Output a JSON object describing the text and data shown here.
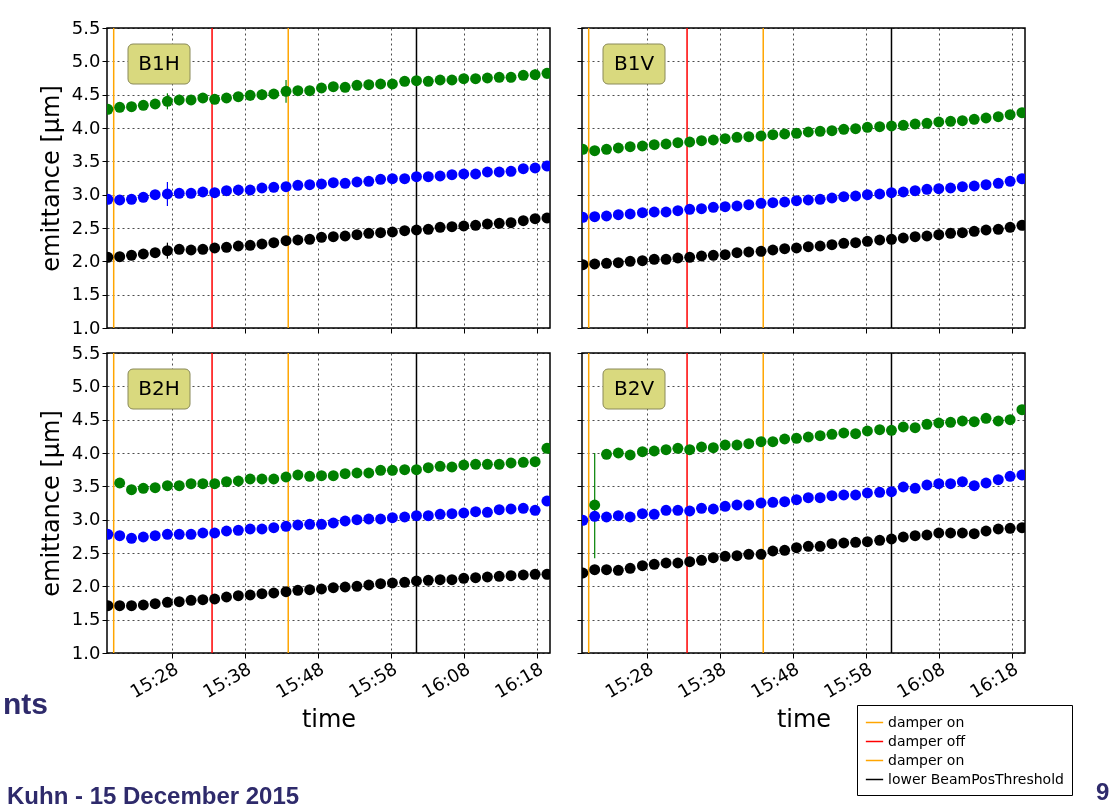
{
  "chart_data": [
    {
      "type": "scatter",
      "ylabel": "emittance [μm]",
      "annotations": [
        "B1H"
      ],
      "marker": "circle",
      "grid": true,
      "tick_labels": "y",
      "xlim": [
        15.318,
        16.33
      ],
      "xticks": [
        {
          "value": 15.4667,
          "label": null
        },
        {
          "value": 15.6333,
          "label": null
        },
        {
          "value": 15.8,
          "label": null
        },
        {
          "value": 15.9667,
          "label": null
        },
        {
          "value": 16.1333,
          "label": null
        },
        {
          "value": 16.3,
          "label": null
        }
      ],
      "ylim": [
        1,
        5.5
      ],
      "yticks": [
        {
          "value": 1,
          "label": "1.0"
        },
        1.5,
        {
          "value": 2,
          "label": "2.0"
        },
        2.5,
        {
          "value": 3,
          "label": "3.0"
        },
        3.5,
        {
          "value": 4,
          "label": "4.0"
        },
        4.5,
        {
          "value": 5,
          "label": "5.0"
        },
        5.5
      ],
      "ref_lines": [
        {
          "axis": "x",
          "value": 15.3333,
          "color": "#ffa500"
        },
        {
          "axis": "x",
          "value": 15.558,
          "color": "#ff0000"
        },
        {
          "axis": "x",
          "value": 15.732,
          "color": "#ffa500"
        },
        {
          "axis": "x",
          "value": 16.025,
          "color": "#000000"
        }
      ],
      "x": [
        15.32,
        15.347,
        15.374,
        15.401,
        15.428,
        15.456,
        15.483,
        15.51,
        15.537,
        15.564,
        15.591,
        15.618,
        15.645,
        15.672,
        15.699,
        15.727,
        15.754,
        15.781,
        15.808,
        15.835,
        15.862,
        15.889,
        15.916,
        15.943,
        15.97,
        15.998,
        16.025,
        16.052,
        16.079,
        16.106,
        16.133,
        16.16,
        16.187,
        16.214,
        16.241,
        16.269,
        16.296,
        16.323
      ],
      "series": [
        {
          "color": "#008000",
          "values": [
            4.28,
            4.31,
            4.32,
            4.34,
            4.36,
            4.4,
            4.42,
            4.42,
            4.45,
            4.43,
            4.45,
            4.47,
            4.49,
            4.5,
            4.51,
            4.55,
            4.56,
            4.56,
            4.6,
            4.62,
            4.61,
            4.64,
            4.65,
            4.66,
            4.66,
            4.7,
            4.71,
            4.7,
            4.72,
            4.72,
            4.74,
            4.74,
            4.75,
            4.76,
            4.76,
            4.79,
            4.8,
            4.82
          ],
          "errors": [
            0.07,
            0.07,
            0.07,
            0.07,
            0.07,
            0.12,
            0.08,
            0.07,
            0.07,
            0.07,
            0.07,
            0.07,
            0.08,
            0.08,
            0.07,
            0.17,
            0.07,
            0.07,
            0.07,
            0.07,
            0.07,
            0.07,
            0.07,
            0.07,
            0.07,
            0.07,
            0.07,
            0.07,
            0.07,
            0.07,
            0.07,
            0.07,
            0.07,
            0.07,
            0.07,
            0.07,
            0.08,
            0.08
          ]
        },
        {
          "color": "#0000ff",
          "values": [
            2.93,
            2.92,
            2.93,
            2.96,
            3.0,
            3.01,
            3.02,
            3.02,
            3.04,
            3.03,
            3.06,
            3.07,
            3.07,
            3.1,
            3.11,
            3.12,
            3.14,
            3.15,
            3.16,
            3.18,
            3.17,
            3.19,
            3.2,
            3.23,
            3.24,
            3.24,
            3.27,
            3.27,
            3.28,
            3.3,
            3.31,
            3.31,
            3.34,
            3.34,
            3.35,
            3.39,
            3.4,
            3.43
          ],
          "errors": [
            null,
            null,
            null,
            null,
            null,
            0.18,
            null,
            null,
            null,
            null,
            null,
            null,
            null,
            null,
            null,
            0.05,
            null,
            null,
            null,
            null,
            null,
            null,
            null,
            null,
            null,
            null,
            null,
            null,
            null,
            null,
            null,
            null,
            null,
            null,
            null,
            null,
            null,
            null
          ]
        },
        {
          "color": "#000000",
          "values": [
            2.06,
            2.07,
            2.09,
            2.11,
            2.13,
            2.16,
            2.18,
            2.17,
            2.18,
            2.2,
            2.21,
            2.23,
            2.24,
            2.26,
            2.28,
            2.31,
            2.32,
            2.33,
            2.36,
            2.37,
            2.38,
            2.4,
            2.42,
            2.43,
            2.44,
            2.46,
            2.47,
            2.48,
            2.51,
            2.52,
            2.53,
            2.54,
            2.56,
            2.57,
            2.58,
            2.61,
            2.64,
            2.65
          ],
          "errors": [
            null,
            null,
            null,
            null,
            null,
            0.12,
            null,
            null,
            null,
            null,
            null,
            null,
            null,
            null,
            null,
            null,
            null,
            null,
            null,
            null,
            null,
            null,
            null,
            null,
            null,
            null,
            null,
            null,
            null,
            null,
            null,
            null,
            null,
            null,
            null,
            null,
            null,
            null
          ]
        }
      ]
    },
    {
      "type": "scatter",
      "annotations": [
        "B1V"
      ],
      "marker": "circle",
      "grid": true,
      "tick_labels": false,
      "xlim": [
        15.318,
        16.33
      ],
      "xticks": [
        {
          "value": 15.4667,
          "label": null
        },
        {
          "value": 15.6333,
          "label": null
        },
        {
          "value": 15.8,
          "label": null
        },
        {
          "value": 15.9667,
          "label": null
        },
        {
          "value": 16.1333,
          "label": null
        },
        {
          "value": 16.3,
          "label": null
        }
      ],
      "ylim": [
        1,
        5.5
      ],
      "yticks": [
        {
          "value": 1,
          "label": null
        },
        {
          "value": 1.5,
          "label": null
        },
        {
          "value": 2,
          "label": null
        },
        {
          "value": 2.5,
          "label": null
        },
        {
          "value": 3,
          "label": null
        },
        {
          "value": 3.5,
          "label": null
        },
        {
          "value": 4,
          "label": null
        },
        {
          "value": 4.5,
          "label": null
        },
        {
          "value": 5,
          "label": null
        },
        {
          "value": 5.5,
          "label": null
        }
      ],
      "ref_lines": [
        {
          "axis": "x",
          "value": 15.3333,
          "color": "#ffa500"
        },
        {
          "axis": "x",
          "value": 15.558,
          "color": "#ff0000"
        },
        {
          "axis": "x",
          "value": 15.732,
          "color": "#ffa500"
        },
        {
          "axis": "x",
          "value": 16.025,
          "color": "#000000"
        }
      ],
      "x": [
        15.32,
        15.347,
        15.374,
        15.401,
        15.428,
        15.456,
        15.483,
        15.51,
        15.537,
        15.564,
        15.591,
        15.618,
        15.645,
        15.672,
        15.699,
        15.727,
        15.754,
        15.781,
        15.808,
        15.835,
        15.862,
        15.889,
        15.916,
        15.943,
        15.97,
        15.998,
        16.025,
        16.052,
        16.079,
        16.106,
        16.133,
        16.16,
        16.187,
        16.214,
        16.241,
        16.269,
        16.296,
        16.323
      ],
      "series": [
        {
          "color": "#008000",
          "values": [
            3.68,
            3.66,
            3.68,
            3.7,
            3.72,
            3.73,
            3.75,
            3.76,
            3.78,
            3.79,
            3.81,
            3.82,
            3.84,
            3.86,
            3.87,
            3.88,
            3.9,
            3.91,
            3.92,
            3.94,
            3.95,
            3.96,
            3.98,
            3.99,
            4.01,
            4.02,
            4.03,
            4.04,
            4.06,
            4.07,
            4.09,
            4.1,
            4.11,
            4.13,
            4.15,
            4.17,
            4.2,
            4.23
          ]
        },
        {
          "color": "#0000ff",
          "values": [
            2.66,
            2.67,
            2.68,
            2.7,
            2.71,
            2.73,
            2.74,
            2.74,
            2.76,
            2.78,
            2.79,
            2.81,
            2.82,
            2.83,
            2.85,
            2.87,
            2.88,
            2.89,
            2.91,
            2.92,
            2.93,
            2.95,
            2.97,
            2.98,
            3.0,
            3.01,
            3.03,
            3.04,
            3.06,
            3.08,
            3.09,
            3.1,
            3.12,
            3.13,
            3.15,
            3.17,
            3.2,
            3.24
          ]
        },
        {
          "color": "#000000",
          "values": [
            1.95,
            1.96,
            1.97,
            1.98,
            2.0,
            2.01,
            2.03,
            2.03,
            2.05,
            2.06,
            2.08,
            2.09,
            2.1,
            2.13,
            2.14,
            2.15,
            2.17,
            2.19,
            2.2,
            2.22,
            2.23,
            2.25,
            2.27,
            2.28,
            2.3,
            2.32,
            2.33,
            2.35,
            2.37,
            2.38,
            2.4,
            2.42,
            2.43,
            2.45,
            2.47,
            2.48,
            2.51,
            2.54
          ]
        }
      ]
    },
    {
      "type": "scatter",
      "xlabel": "time",
      "ylabel": "emittance [μm]",
      "annotations": [
        "B2H",
        "nts",
        "Kuhn - 15 December 2015"
      ],
      "marker": "circle",
      "grid": true,
      "xlim": [
        15.318,
        16.33
      ],
      "xticks": [
        {
          "value": 15.4667,
          "label": "15:28"
        },
        {
          "value": 15.6333,
          "label": "15:38"
        },
        {
          "value": 15.8,
          "label": "15:48"
        },
        {
          "value": 15.9667,
          "label": "15:58"
        },
        {
          "value": 16.1333,
          "label": "16:08"
        },
        {
          "value": 16.3,
          "label": "16:18"
        }
      ],
      "ylim": [
        1,
        5.5
      ],
      "yticks": [
        {
          "value": 1,
          "label": "1.0"
        },
        1.5,
        {
          "value": 2,
          "label": "2.0"
        },
        2.5,
        {
          "value": 3,
          "label": "3.0"
        },
        3.5,
        {
          "value": 4,
          "label": "4.0"
        },
        4.5,
        {
          "value": 5,
          "label": "5.0"
        },
        5.5
      ],
      "ref_lines": [
        {
          "axis": "x",
          "value": 15.3333,
          "color": "#ffa500"
        },
        {
          "axis": "x",
          "value": 15.558,
          "color": "#ff0000"
        },
        {
          "axis": "x",
          "value": 15.732,
          "color": "#ffa500"
        },
        {
          "axis": "x",
          "value": 16.025,
          "color": "#000000"
        }
      ],
      "x": [
        15.32,
        15.347,
        15.374,
        15.401,
        15.428,
        15.456,
        15.483,
        15.51,
        15.537,
        15.564,
        15.591,
        15.618,
        15.645,
        15.672,
        15.699,
        15.727,
        15.754,
        15.781,
        15.808,
        15.835,
        15.862,
        15.889,
        15.916,
        15.943,
        15.97,
        15.998,
        16.025,
        16.052,
        16.079,
        16.106,
        16.133,
        16.16,
        16.187,
        16.214,
        16.241,
        16.269,
        16.296,
        16.323
      ],
      "series": [
        {
          "color": "#008000",
          "values": [
            null,
            3.55,
            3.45,
            3.47,
            3.48,
            3.51,
            3.51,
            3.54,
            3.54,
            3.54,
            3.57,
            3.58,
            3.61,
            3.61,
            3.61,
            3.64,
            3.67,
            3.65,
            3.66,
            3.66,
            3.69,
            3.7,
            3.7,
            3.74,
            3.74,
            3.75,
            3.75,
            3.78,
            3.8,
            3.79,
            3.82,
            3.83,
            3.83,
            3.83,
            3.85,
            3.86,
            3.87,
            4.07
          ]
        },
        {
          "color": "#0000ff",
          "values": [
            2.78,
            2.76,
            2.72,
            2.74,
            2.76,
            2.78,
            2.78,
            2.78,
            2.8,
            2.8,
            2.83,
            2.84,
            2.86,
            2.86,
            2.88,
            2.9,
            2.92,
            2.93,
            2.93,
            2.95,
            2.98,
            3.0,
            3.01,
            3.01,
            3.03,
            3.04,
            3.06,
            3.06,
            3.08,
            3.09,
            3.1,
            3.12,
            3.11,
            3.15,
            3.16,
            3.17,
            3.14,
            3.28
          ]
        },
        {
          "color": "#000000",
          "values": [
            1.71,
            1.71,
            1.71,
            1.72,
            1.74,
            1.76,
            1.77,
            1.79,
            1.8,
            1.81,
            1.84,
            1.86,
            1.87,
            1.89,
            1.9,
            1.92,
            1.94,
            1.95,
            1.96,
            1.98,
            1.99,
            2.0,
            2.02,
            2.04,
            2.05,
            2.06,
            2.08,
            2.09,
            2.1,
            2.1,
            2.12,
            2.13,
            2.14,
            2.15,
            2.16,
            2.17,
            2.18,
            2.18
          ]
        }
      ]
    },
    {
      "type": "scatter",
      "xlabel": "time",
      "annotations": [
        "B2V",
        "9"
      ],
      "marker": "circle",
      "grid": true,
      "tick_labels": "x",
      "legend": "bottom right",
      "xlim": [
        15.318,
        16.33
      ],
      "xticks": [
        {
          "value": 15.4667,
          "label": "15:28"
        },
        {
          "value": 15.6333,
          "label": "15:38"
        },
        {
          "value": 15.8,
          "label": "15:48"
        },
        {
          "value": 15.9667,
          "label": "15:58"
        },
        {
          "value": 16.1333,
          "label": "16:08"
        },
        {
          "value": 16.3,
          "label": "16:18"
        }
      ],
      "ylim": [
        1,
        5.5
      ],
      "yticks": [
        {
          "value": 1,
          "label": null
        },
        {
          "value": 1.5,
          "label": null
        },
        {
          "value": 2,
          "label": null
        },
        {
          "value": 2.5,
          "label": null
        },
        {
          "value": 3,
          "label": null
        },
        {
          "value": 3.5,
          "label": null
        },
        {
          "value": 4,
          "label": null
        },
        {
          "value": 4.5,
          "label": null
        },
        {
          "value": 5,
          "label": null
        },
        {
          "value": 5.5,
          "label": null
        }
      ],
      "ref_lines": [
        {
          "axis": "x",
          "value": 15.3333,
          "label": "damper on",
          "color": "#ffa500"
        },
        {
          "axis": "x",
          "value": 15.558,
          "label": "damper off",
          "color": "#ff0000"
        },
        {
          "axis": "x",
          "value": 15.732,
          "label": "damper on",
          "color": "#ffa500"
        },
        {
          "axis": "x",
          "value": 16.025,
          "label": "lower BeamPosThreshold",
          "color": "#000000"
        }
      ],
      "x": [
        15.32,
        15.347,
        15.374,
        15.401,
        15.428,
        15.456,
        15.483,
        15.51,
        15.537,
        15.564,
        15.591,
        15.618,
        15.645,
        15.672,
        15.699,
        15.727,
        15.754,
        15.781,
        15.808,
        15.835,
        15.862,
        15.889,
        15.916,
        15.943,
        15.97,
        15.998,
        16.025,
        16.052,
        16.079,
        16.106,
        16.133,
        16.16,
        16.187,
        16.214,
        16.241,
        16.269,
        16.296,
        16.323
      ],
      "series": [
        {
          "color": "#008000",
          "values": [
            null,
            3.22,
            3.98,
            4.0,
            3.97,
            4.02,
            4.03,
            4.05,
            4.07,
            4.05,
            4.09,
            4.08,
            4.12,
            4.12,
            4.14,
            4.17,
            4.17,
            4.21,
            4.22,
            4.24,
            4.26,
            4.28,
            4.3,
            4.29,
            4.33,
            4.35,
            4.34,
            4.39,
            4.38,
            4.43,
            4.45,
            4.46,
            4.48,
            4.47,
            4.52,
            4.48,
            4.5,
            4.65
          ],
          "errors": [
            null,
            [
              2.42,
              4.0
            ],
            0.05,
            0.05,
            0.05,
            0.05,
            0.05,
            0.05,
            0.05,
            0.05,
            0.05,
            0.05,
            0.05,
            0.05,
            0.05,
            0.05,
            0.05,
            0.05,
            0.05,
            0.05,
            0.05,
            0.05,
            0.05,
            0.05,
            0.05,
            0.05,
            0.05,
            0.05,
            0.05,
            0.05,
            0.05,
            0.05,
            0.06,
            0.06,
            0.06,
            0.06,
            0.06,
            0.07
          ]
        },
        {
          "color": "#0000ff",
          "values": [
            2.99,
            3.05,
            3.04,
            3.06,
            3.04,
            3.09,
            3.08,
            3.14,
            3.14,
            3.13,
            3.17,
            3.16,
            3.2,
            3.22,
            3.22,
            3.25,
            3.26,
            3.27,
            3.3,
            3.33,
            3.33,
            3.36,
            3.37,
            3.37,
            3.4,
            3.41,
            3.42,
            3.49,
            3.47,
            3.52,
            3.54,
            3.54,
            3.57,
            3.51,
            3.55,
            3.6,
            3.65,
            3.67
          ]
        },
        {
          "color": "#000000",
          "values": [
            2.2,
            2.25,
            2.25,
            2.24,
            2.27,
            2.31,
            2.33,
            2.35,
            2.35,
            2.37,
            2.39,
            2.43,
            2.45,
            2.46,
            2.48,
            2.48,
            2.53,
            2.54,
            2.58,
            2.6,
            2.6,
            2.64,
            2.65,
            2.66,
            2.67,
            2.69,
            2.71,
            2.74,
            2.76,
            2.77,
            2.8,
            2.8,
            2.8,
            2.79,
            2.83,
            2.86,
            2.87,
            2.88
          ]
        }
      ]
    }
  ]
}
